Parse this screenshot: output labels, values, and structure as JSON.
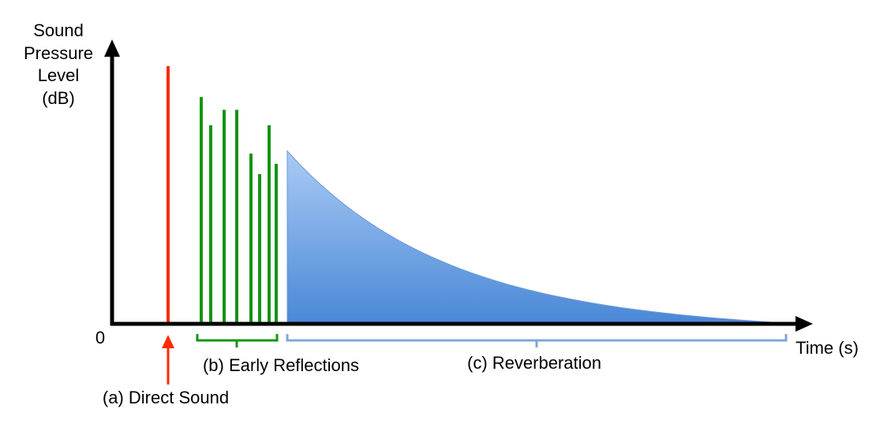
{
  "labels": {
    "y_axis": [
      "Sound",
      "Pressure",
      "Level",
      "(dB)"
    ],
    "x_axis": "Time (s)",
    "origin": "0",
    "direct": "(a) Direct Sound",
    "early": "(b) Early Reflections",
    "reverb": "(c) Reverberation"
  },
  "colors": {
    "axis": "#000000",
    "direct": "#ff2a00",
    "early": "#149414",
    "reverb_fill_top": "#a9cbf5",
    "reverb_fill_bottom": "#4a88d6",
    "reverb_bracket": "#7fa7d6"
  },
  "components": {
    "direct_sound": {
      "level": 1.0
    },
    "early_reflections": [
      0.88,
      0.77,
      0.83,
      0.83,
      0.66,
      0.58,
      0.77,
      0.62
    ],
    "reverberation": {
      "start_level": 0.67,
      "end_level": 0.0,
      "shape": "exponential-decay"
    }
  }
}
